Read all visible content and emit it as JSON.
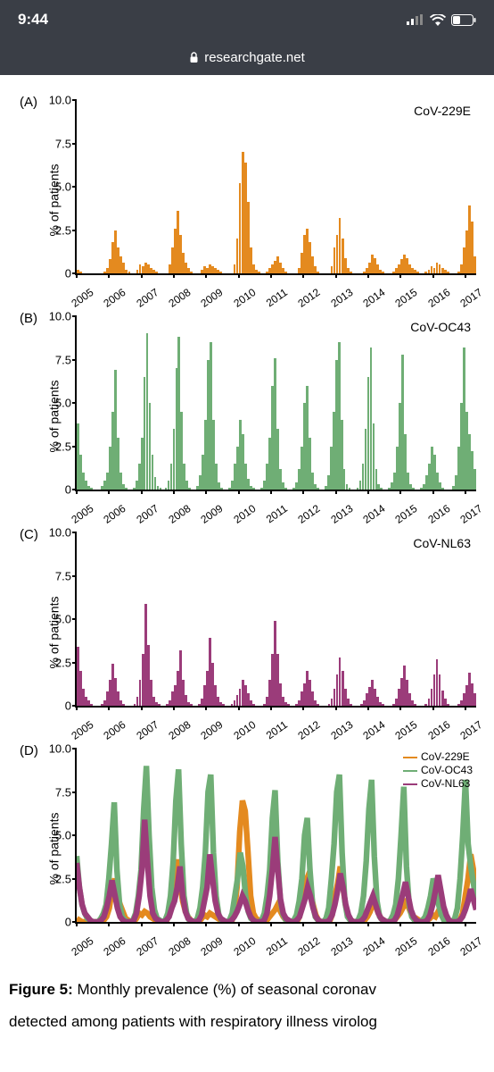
{
  "status": {
    "time": "9:44"
  },
  "nav": {
    "domain": "researchgate.net"
  },
  "caption": {
    "bold": "Figure 5:",
    "line1_rest": " Monthly prevalence (%) of seasonal coronav",
    "line2": "detected among patients with respiratory illness virolog"
  },
  "axes": {
    "ylabel": "% of patients",
    "ylim": [
      0,
      10
    ],
    "yticks": [
      0,
      2.5,
      5.0,
      7.5,
      10.0
    ],
    "xlabels": [
      "2005",
      "2006",
      "2007",
      "2008",
      "2009",
      "2010",
      "2011",
      "2012",
      "2013",
      "2014",
      "2015",
      "2016",
      "2017"
    ],
    "label_fontsize": 14,
    "tick_fontsize": 13
  },
  "colors": {
    "cov_229e": "#e48a1f",
    "cov_oc43": "#6fae75",
    "cov_nl63": "#9b3c7a",
    "axis": "#000000",
    "background": "#ffffff",
    "status_bg": "#3a3e46"
  },
  "panels": {
    "A": {
      "letter": "(A)",
      "series_label": "CoV-229E",
      "type": "bar",
      "color_key": "cov_229e",
      "values": [
        0.2,
        0.1,
        0,
        0,
        0,
        0,
        0,
        0,
        0,
        0,
        0.1,
        0.3,
        0.8,
        1.8,
        2.5,
        1.5,
        1.0,
        0.6,
        0.2,
        0.1,
        0,
        0,
        0.2,
        0.5,
        0.4,
        0.6,
        0.5,
        0.3,
        0.2,
        0.1,
        0,
        0,
        0,
        0,
        0.5,
        1.5,
        2.6,
        3.6,
        2.2,
        1.2,
        0.6,
        0.3,
        0.1,
        0,
        0,
        0,
        0.2,
        0.4,
        0.3,
        0.5,
        0.4,
        0.3,
        0.2,
        0.1,
        0,
        0,
        0,
        0,
        0.5,
        2.0,
        5.2,
        7.0,
        6.4,
        4.1,
        1.5,
        0.5,
        0.2,
        0.1,
        0,
        0,
        0.1,
        0.3,
        0.5,
        0.7,
        1.0,
        0.6,
        0.3,
        0.1,
        0,
        0,
        0,
        0,
        0.3,
        1.2,
        2.2,
        2.6,
        1.8,
        1.0,
        0.4,
        0.1,
        0,
        0,
        0,
        0,
        0.4,
        1.5,
        2.2,
        3.2,
        2.0,
        0.9,
        0.3,
        0.1,
        0,
        0,
        0,
        0,
        0.1,
        0.3,
        0.6,
        1.1,
        0.9,
        0.5,
        0.2,
        0.1,
        0,
        0,
        0,
        0.1,
        0.3,
        0.5,
        0.8,
        1.1,
        0.9,
        0.5,
        0.3,
        0.2,
        0.1,
        0,
        0,
        0.1,
        0.2,
        0.4,
        0.3,
        0.6,
        0.5,
        0.3,
        0.2,
        0.1,
        0,
        0,
        0,
        0.1,
        0.5,
        1.5,
        2.5,
        3.9,
        3.0,
        1.0
      ]
    },
    "B": {
      "letter": "(B)",
      "series_label": "CoV-OC43",
      "type": "bar",
      "color_key": "cov_oc43",
      "values": [
        3.8,
        2.0,
        1.0,
        0.5,
        0.2,
        0.1,
        0,
        0,
        0,
        0.2,
        0.5,
        1.0,
        2.5,
        4.5,
        6.9,
        3.0,
        1.0,
        0.3,
        0.1,
        0,
        0,
        0.1,
        0.5,
        1.5,
        3.0,
        6.5,
        9.0,
        5.0,
        2.0,
        0.7,
        0.2,
        0.1,
        0,
        0.1,
        0.5,
        1.5,
        3.5,
        7.0,
        8.8,
        4.5,
        1.5,
        0.5,
        0.1,
        0,
        0,
        0.2,
        0.8,
        2.0,
        4.0,
        7.5,
        8.5,
        4.0,
        1.5,
        0.4,
        0.1,
        0,
        0,
        0.1,
        0.5,
        1.5,
        2.5,
        4.0,
        3.2,
        1.5,
        0.6,
        0.2,
        0.1,
        0,
        0,
        0.1,
        0.5,
        1.5,
        3.0,
        6.0,
        7.6,
        3.5,
        1.2,
        0.4,
        0.1,
        0,
        0,
        0.1,
        0.4,
        1.2,
        2.5,
        5.0,
        6.0,
        3.0,
        1.0,
        0.3,
        0.1,
        0,
        0,
        0.2,
        0.8,
        2.5,
        4.5,
        7.5,
        8.5,
        4.0,
        1.2,
        0.3,
        0.1,
        0,
        0,
        0.1,
        0.5,
        1.5,
        3.5,
        6.5,
        8.2,
        3.8,
        1.2,
        0.3,
        0.1,
        0,
        0,
        0.1,
        0.4,
        1.0,
        2.5,
        5.0,
        7.8,
        3.2,
        1.0,
        0.3,
        0.1,
        0,
        0,
        0.1,
        0.3,
        0.8,
        1.5,
        2.5,
        2.0,
        1.0,
        0.4,
        0.1,
        0,
        0,
        0,
        0.2,
        0.8,
        2.5,
        5.0,
        8.2,
        4.5,
        3.2,
        2.2,
        1.2
      ]
    },
    "C": {
      "letter": "(C)",
      "series_label": "CoV-NL63",
      "type": "bar",
      "color_key": "cov_nl63",
      "values": [
        3.4,
        2.0,
        1.0,
        0.5,
        0.3,
        0.1,
        0,
        0,
        0,
        0.1,
        0.3,
        0.8,
        1.5,
        2.4,
        1.6,
        0.8,
        0.3,
        0.1,
        0,
        0,
        0,
        0.1,
        0.5,
        1.5,
        3.0,
        5.9,
        3.5,
        1.5,
        0.5,
        0.2,
        0.1,
        0,
        0,
        0.1,
        0.3,
        0.8,
        1.2,
        2.0,
        3.2,
        1.5,
        0.6,
        0.2,
        0.1,
        0,
        0,
        0.1,
        0.4,
        1.2,
        2.0,
        3.9,
        2.5,
        1.2,
        0.5,
        0.2,
        0.1,
        0,
        0,
        0.1,
        0.3,
        0.6,
        1.0,
        1.5,
        1.2,
        0.7,
        0.3,
        0.1,
        0,
        0,
        0,
        0.1,
        0.5,
        1.5,
        3.0,
        4.9,
        3.0,
        1.3,
        0.5,
        0.2,
        0.1,
        0,
        0,
        0.1,
        0.3,
        0.8,
        1.3,
        2.0,
        1.5,
        0.8,
        0.3,
        0.1,
        0,
        0,
        0,
        0.1,
        0.4,
        1.0,
        1.8,
        2.8,
        2.0,
        1.0,
        0.4,
        0.1,
        0,
        0,
        0,
        0.1,
        0.3,
        0.7,
        1.1,
        1.5,
        1.0,
        0.5,
        0.2,
        0.1,
        0,
        0,
        0,
        0.1,
        0.4,
        1.0,
        1.6,
        2.3,
        1.5,
        0.7,
        0.3,
        0.1,
        0,
        0,
        0,
        0.1,
        0.4,
        1.0,
        1.8,
        2.7,
        1.8,
        0.9,
        0.4,
        0.1,
        0,
        0,
        0,
        0.1,
        0.3,
        0.7,
        1.2,
        1.9,
        1.3,
        0.7
      ]
    },
    "D": {
      "letter": "(D)",
      "type": "line",
      "legend": [
        {
          "label": "CoV-229E",
          "color_key": "cov_229e"
        },
        {
          "label": "CoV-OC43",
          "color_key": "cov_oc43"
        },
        {
          "label": "CoV-NL63",
          "color_key": "cov_nl63"
        }
      ],
      "line_width": 1.6
    }
  }
}
